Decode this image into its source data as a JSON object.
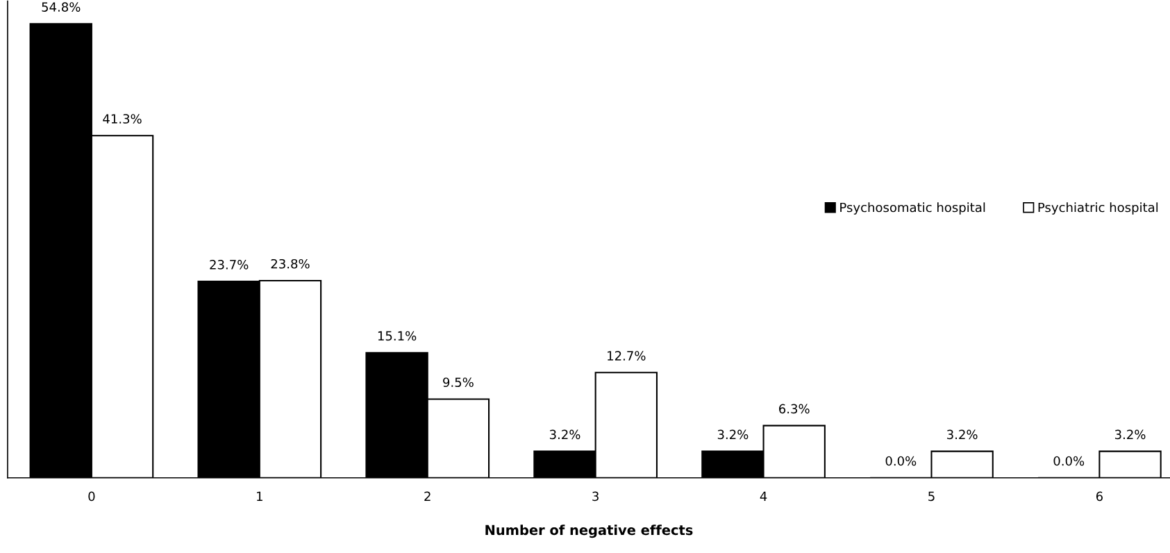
{
  "chart_data": {
    "type": "bar",
    "xlabel": "Number of negative effects",
    "categories": [
      "0",
      "1",
      "2",
      "3",
      "4",
      "5",
      "6"
    ],
    "series": [
      {
        "name": "Psychosomatic hospital",
        "color": "#000000",
        "values": [
          54.8,
          23.7,
          15.1,
          3.2,
          3.2,
          0.0,
          0.0
        ],
        "value_labels": [
          "54.8%",
          "23.7%",
          "15.1%",
          "3.2%",
          "3.2%",
          "0.0%",
          "0.0%"
        ]
      },
      {
        "name": "Psychiatric hospital",
        "color": "#ffffff",
        "values": [
          41.3,
          23.8,
          9.5,
          12.7,
          6.3,
          3.2,
          3.2
        ],
        "value_labels": [
          "41.3%",
          "23.8%",
          "9.5%",
          "12.7%",
          "6.3%",
          "3.2%",
          "3.2%"
        ]
      }
    ],
    "tick_labels": "x",
    "legend": "right",
    "grid": false
  }
}
